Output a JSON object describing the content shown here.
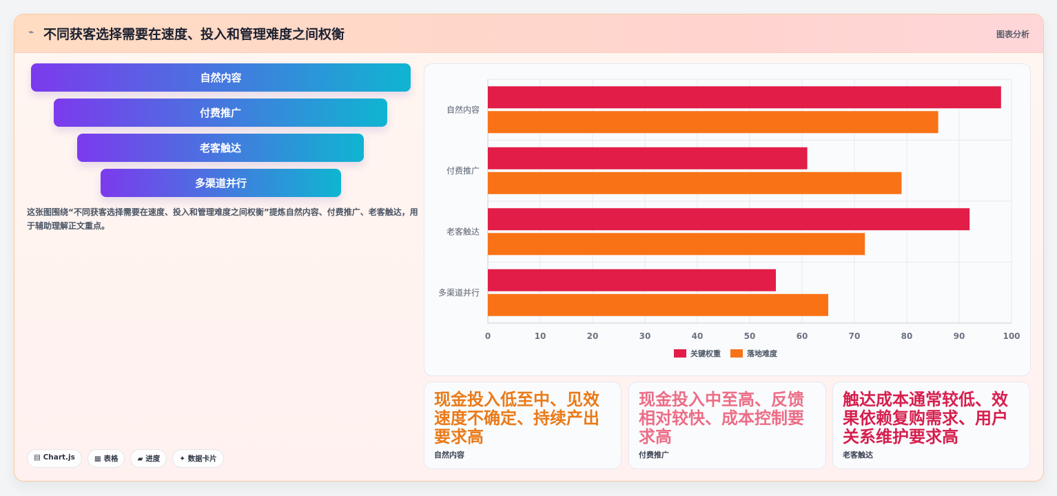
{
  "header": {
    "icon": "chart-icon",
    "title": "不同获客选择需要在速度、投入和管理难度之间权衡",
    "tag": "图表分析"
  },
  "funnel": {
    "items": [
      "自然内容",
      "付费推广",
      "老客触达",
      "多渠道并行"
    ]
  },
  "description": "这张图围绕“不同获客选择需要在速度、投入和管理难度之间权衡”提炼自然内容、付费推广、老客触达，用于辅助理解正文重点。",
  "chips": [
    "▤ Chart.js",
    "▦ 表格",
    "▰ 进度",
    "✦ 数据卡片"
  ],
  "colors": {
    "primary_series": "#e11d48",
    "secondary_series": "#f97316",
    "stat_1": "#ea7a18",
    "stat_2": "#ec6d86",
    "stat_3": "#d61e4d"
  },
  "chart_data": {
    "type": "bar",
    "orientation": "horizontal",
    "categories": [
      "自然内容",
      "付费推广",
      "老客触达",
      "多渠道并行"
    ],
    "series": [
      {
        "name": "关键权重",
        "values": [
          98,
          61,
          92,
          55
        ]
      },
      {
        "name": "落地难度",
        "values": [
          86,
          79,
          72,
          65
        ]
      }
    ],
    "xlim": [
      0,
      100
    ],
    "xticks": [
      0,
      10,
      20,
      30,
      40,
      50,
      60,
      70,
      80,
      90,
      100
    ],
    "grid": true,
    "legend": "bottom"
  },
  "stats": [
    {
      "value": "现金投入低至中、见效速度不确定、持续产出要求高",
      "label": "自然内容"
    },
    {
      "value": "现金投入中至高、反馈相对较快、成本控制要求高",
      "label": "付费推广"
    },
    {
      "value": "触达成本通常较低、效果依赖复购需求、用户关系维护要求高",
      "label": "老客触达"
    }
  ]
}
